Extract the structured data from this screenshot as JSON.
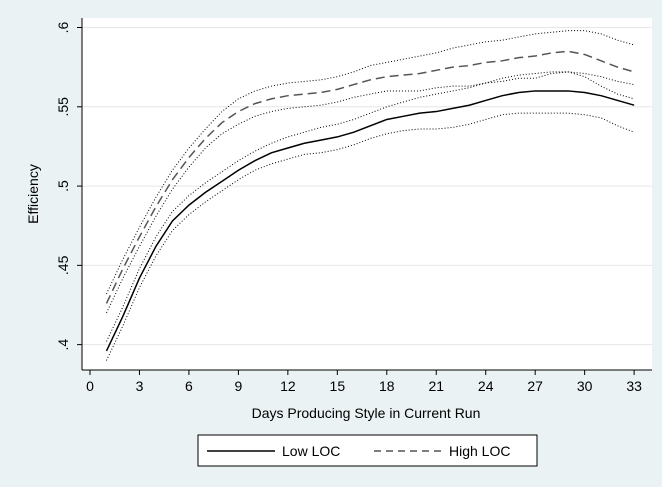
{
  "chart_data": {
    "type": "line",
    "xlabel": "Days Producing Style in Current Run",
    "ylabel": "Efficiency",
    "xlim": [
      1,
      33
    ],
    "ylim": [
      0.4,
      0.6
    ],
    "x_ticks": [
      "0",
      "3",
      "6",
      "9",
      "12",
      "15",
      "18",
      "21",
      "24",
      "27",
      "30",
      "33"
    ],
    "y_ticks": [
      ".4",
      ".45",
      ".5",
      ".55",
      ".6"
    ],
    "grid": true,
    "legend_position": "bottom",
    "x": [
      1,
      2,
      3,
      4,
      5,
      6,
      7,
      8,
      9,
      10,
      11,
      12,
      13,
      14,
      15,
      16,
      17,
      18,
      19,
      20,
      21,
      22,
      23,
      24,
      25,
      26,
      27,
      28,
      29,
      30,
      31,
      32,
      33
    ],
    "series": [
      {
        "name": "Low LOC",
        "style": "solid",
        "color": "#000000",
        "values": [
          0.396,
          0.418,
          0.442,
          0.462,
          0.478,
          0.488,
          0.496,
          0.503,
          0.51,
          0.516,
          0.521,
          0.524,
          0.527,
          0.529,
          0.531,
          0.534,
          0.538,
          0.542,
          0.544,
          0.546,
          0.547,
          0.549,
          0.551,
          0.554,
          0.557,
          0.559,
          0.56,
          0.56,
          0.56,
          0.559,
          0.557,
          0.554,
          0.551
        ]
      },
      {
        "name": "High LOC",
        "style": "dashed",
        "color": "#555555",
        "values": [
          0.426,
          0.448,
          0.468,
          0.487,
          0.504,
          0.518,
          0.53,
          0.54,
          0.547,
          0.552,
          0.555,
          0.557,
          0.558,
          0.559,
          0.561,
          0.564,
          0.567,
          0.569,
          0.57,
          0.571,
          0.573,
          0.575,
          0.576,
          0.578,
          0.579,
          0.581,
          0.582,
          0.584,
          0.585,
          0.583,
          0.579,
          0.575,
          0.572
        ]
      }
    ],
    "confidence_bands": [
      {
        "series": "Low LOC",
        "upper": [
          0.402,
          0.424,
          0.448,
          0.468,
          0.484,
          0.494,
          0.502,
          0.509,
          0.516,
          0.522,
          0.527,
          0.531,
          0.534,
          0.537,
          0.539,
          0.542,
          0.546,
          0.55,
          0.553,
          0.556,
          0.558,
          0.56,
          0.562,
          0.565,
          0.568,
          0.57,
          0.571,
          0.572,
          0.572,
          0.571,
          0.569,
          0.566,
          0.564
        ],
        "lower": [
          0.39,
          0.412,
          0.436,
          0.456,
          0.472,
          0.482,
          0.49,
          0.497,
          0.504,
          0.51,
          0.514,
          0.517,
          0.52,
          0.521,
          0.523,
          0.526,
          0.53,
          0.533,
          0.535,
          0.536,
          0.536,
          0.537,
          0.539,
          0.542,
          0.545,
          0.546,
          0.546,
          0.546,
          0.546,
          0.545,
          0.543,
          0.538,
          0.534
        ]
      },
      {
        "series": "High LOC",
        "upper": [
          0.432,
          0.454,
          0.474,
          0.493,
          0.51,
          0.524,
          0.536,
          0.547,
          0.555,
          0.56,
          0.563,
          0.565,
          0.566,
          0.567,
          0.569,
          0.572,
          0.576,
          0.578,
          0.58,
          0.582,
          0.584,
          0.587,
          0.589,
          0.591,
          0.592,
          0.594,
          0.596,
          0.597,
          0.598,
          0.598,
          0.596,
          0.592,
          0.589
        ],
        "lower": [
          0.42,
          0.442,
          0.462,
          0.481,
          0.498,
          0.512,
          0.524,
          0.533,
          0.539,
          0.544,
          0.547,
          0.549,
          0.55,
          0.551,
          0.553,
          0.556,
          0.558,
          0.56,
          0.56,
          0.56,
          0.562,
          0.563,
          0.563,
          0.565,
          0.566,
          0.568,
          0.568,
          0.571,
          0.572,
          0.569,
          0.563,
          0.558,
          0.555
        ]
      }
    ]
  }
}
